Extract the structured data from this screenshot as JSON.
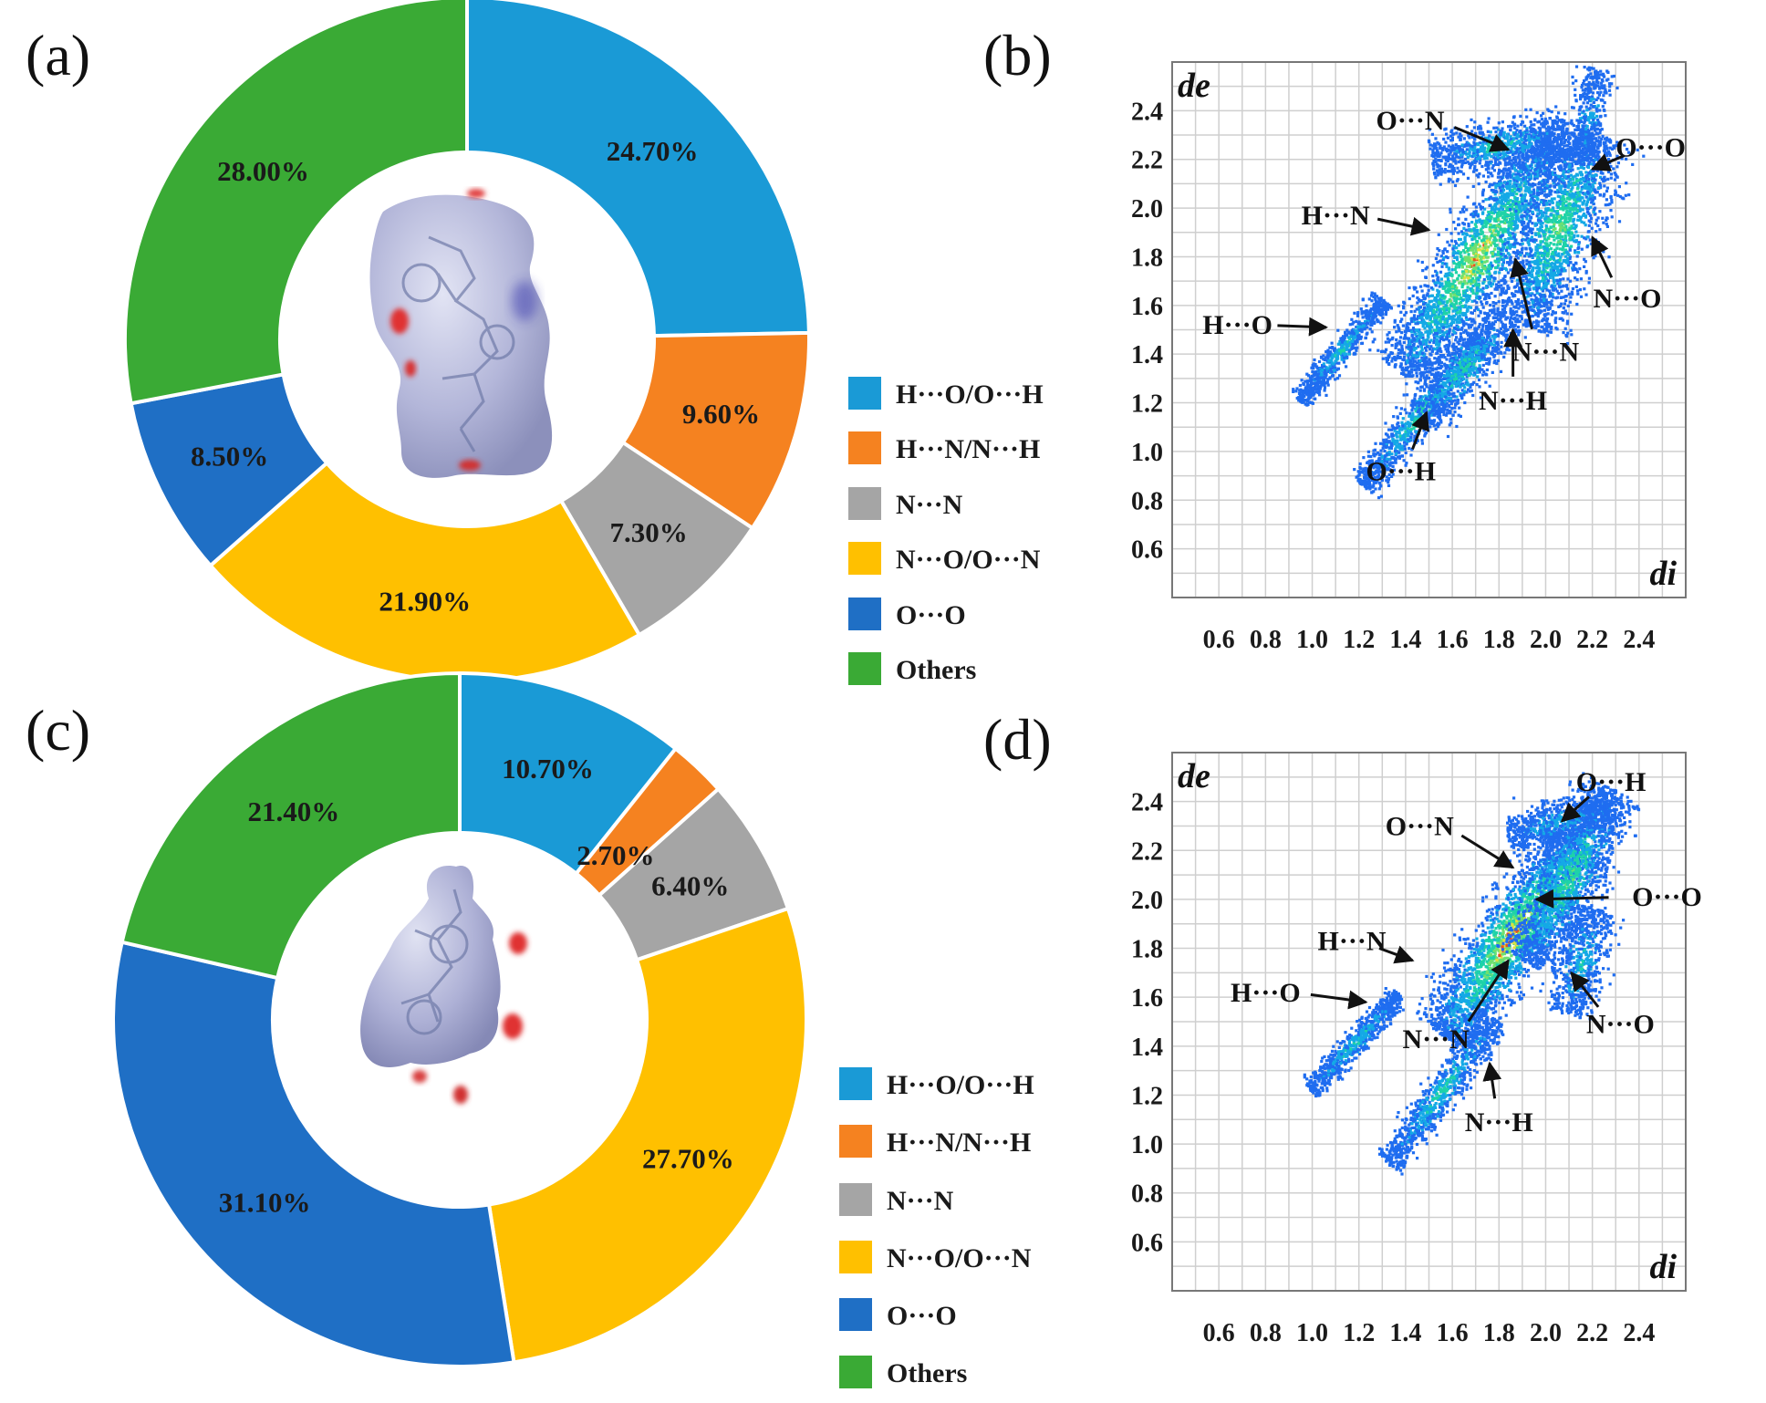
{
  "legend": [
    "H···O/O···H",
    "H···N/N···H",
    "N···N",
    "N···O/O···N",
    "O···O",
    "Others"
  ],
  "colors": [
    "#1a9ad6",
    "#f58220",
    "#a5a5a5",
    "#ffc000",
    "#1f6fc5",
    "#3aaa35"
  ],
  "chart_data": [
    {
      "type": "pie",
      "panel": "(a)",
      "categories": [
        "H···O/O···H",
        "H···N/N···H",
        "N···N",
        "N···O/O···N",
        "O···O",
        "Others"
      ],
      "values": [
        24.7,
        9.6,
        7.3,
        21.9,
        8.5,
        28.0
      ],
      "labels": [
        "24.70%",
        "9.60%",
        "7.30%",
        "21.90%",
        "8.50%",
        "28.00%"
      ]
    },
    {
      "type": "scatter",
      "panel": "(b)",
      "xlabel": "di",
      "ylabel": "de",
      "xlim": [
        0.4,
        2.6
      ],
      "ylim": [
        0.4,
        2.6
      ],
      "x_ticks": [
        "0.6",
        "0.8",
        "1.0",
        "1.2",
        "1.4",
        "1.6",
        "1.8",
        "2.0",
        "2.2",
        "2.4"
      ],
      "y_ticks": [
        "2.4",
        "2.2",
        "2.0",
        "1.8",
        "1.6",
        "1.4",
        "1.2",
        "1.0",
        "0.8",
        "0.6"
      ],
      "annotations": [
        {
          "text": "O···N",
          "di": 1.42,
          "de": 2.36,
          "target_di": 1.84,
          "target_de": 2.24
        },
        {
          "text": "O···O",
          "di": 2.45,
          "de": 2.25,
          "target_di": 2.2,
          "target_de": 2.16
        },
        {
          "text": "H···N",
          "di": 1.1,
          "de": 1.97,
          "target_di": 1.5,
          "target_de": 1.91
        },
        {
          "text": "N···O",
          "di": 2.35,
          "de": 1.63,
          "target_di": 2.2,
          "target_de": 1.88
        },
        {
          "text": "H···O",
          "di": 0.68,
          "de": 1.52,
          "target_di": 1.06,
          "target_de": 1.51
        },
        {
          "text": "N···N",
          "di": 2.0,
          "de": 1.41,
          "target_di": 1.87,
          "target_de": 1.79
        },
        {
          "text": "N···H",
          "di": 1.86,
          "de": 1.21,
          "target_di": 1.86,
          "target_de": 1.5
        },
        {
          "text": "O···H",
          "di": 1.38,
          "de": 0.92,
          "target_di": 1.49,
          "target_de": 1.16
        }
      ]
    },
    {
      "type": "pie",
      "panel": "(c)",
      "categories": [
        "H···O/O···H",
        "H···N/N···H",
        "N···N",
        "N···O/O···N",
        "O···O",
        "Others"
      ],
      "values": [
        10.7,
        2.7,
        6.4,
        27.7,
        31.1,
        21.4
      ],
      "labels": [
        "10.70%",
        "2.70%",
        "6.40%",
        "27.70%",
        "31.10%",
        "21.40%"
      ]
    },
    {
      "type": "scatter",
      "panel": "(d)",
      "xlabel": "di",
      "ylabel": "de",
      "xlim": [
        0.4,
        2.6
      ],
      "ylim": [
        0.4,
        2.6
      ],
      "x_ticks": [
        "0.6",
        "0.8",
        "1.0",
        "1.2",
        "1.4",
        "1.6",
        "1.8",
        "2.0",
        "2.2",
        "2.4"
      ],
      "y_ticks": [
        "2.4",
        "2.2",
        "2.0",
        "1.8",
        "1.6",
        "1.4",
        "1.2",
        "1.0",
        "0.8",
        "0.6"
      ],
      "annotations": [
        {
          "text": "O···H",
          "di": 2.28,
          "de": 2.48,
          "target_di": 2.07,
          "target_de": 2.32
        },
        {
          "text": "O···N",
          "di": 1.46,
          "de": 2.3,
          "target_di": 1.86,
          "target_de": 2.13
        },
        {
          "text": "O···O",
          "di": 2.52,
          "de": 2.01,
          "target_di": 1.96,
          "target_de": 2.0
        },
        {
          "text": "H···N",
          "di": 1.17,
          "de": 1.83,
          "target_di": 1.43,
          "target_de": 1.75
        },
        {
          "text": "H···O",
          "di": 0.8,
          "de": 1.62,
          "target_di": 1.23,
          "target_de": 1.58
        },
        {
          "text": "N···N",
          "di": 1.53,
          "de": 1.43,
          "target_di": 1.84,
          "target_de": 1.75
        },
        {
          "text": "N···O",
          "di": 2.32,
          "de": 1.49,
          "target_di": 2.11,
          "target_de": 1.7
        },
        {
          "text": "N···H",
          "di": 1.8,
          "de": 1.09,
          "target_di": 1.76,
          "target_de": 1.33
        }
      ]
    }
  ]
}
